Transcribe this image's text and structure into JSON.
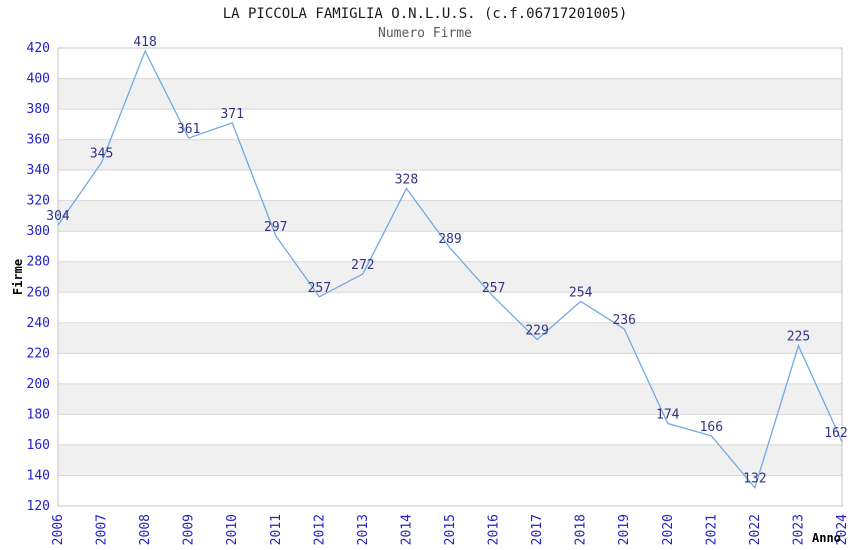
{
  "chart_data": {
    "type": "line",
    "title": "LA PICCOLA FAMIGLIA O.N.L.U.S. (c.f.06717201005)",
    "subtitle": "Numero Firme",
    "xlabel": "Anno",
    "ylabel": "Firme",
    "x": [
      2006,
      2007,
      2008,
      2009,
      2010,
      2011,
      2012,
      2013,
      2014,
      2015,
      2016,
      2017,
      2018,
      2019,
      2020,
      2021,
      2022,
      2023,
      2024
    ],
    "series": [
      {
        "name": "Numero Firme",
        "values": [
          304,
          345,
          418,
          361,
          371,
          297,
          257,
          272,
          328,
          289,
          257,
          229,
          254,
          236,
          174,
          166,
          132,
          225,
          162
        ]
      }
    ],
    "ylim": [
      120,
      420
    ],
    "ytick_step": 20,
    "yticks": [
      120,
      140,
      160,
      180,
      200,
      220,
      240,
      260,
      280,
      300,
      320,
      340,
      360,
      380,
      400,
      420
    ],
    "grid": true,
    "legend": "none",
    "data_labels_visible": true,
    "colors": {
      "line": "#72a9e3",
      "band_alt": "#f0f0f0",
      "band_main": "#ffffff",
      "gridline": "#d8d8d8",
      "plot_border": "#c4c4c4",
      "tick_label": "#2222cc",
      "data_label": "#333388",
      "axis_title": "#000000",
      "title": "#1a1a1a",
      "subtitle": "#5a5a5a",
      "background": "#ffffff"
    }
  }
}
